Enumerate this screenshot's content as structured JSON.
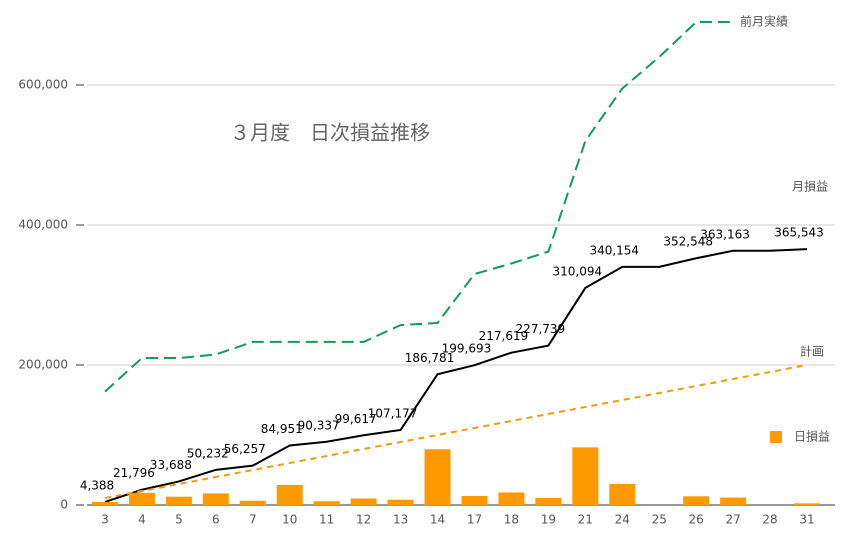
{
  "chart_data": {
    "type": "combo",
    "title": "３月度　日次損益推移",
    "categories": [
      "3",
      "4",
      "5",
      "6",
      "7",
      "10",
      "11",
      "12",
      "13",
      "14",
      "17",
      "18",
      "19",
      "21",
      "24",
      "25",
      "26",
      "27",
      "28",
      "31"
    ],
    "ylim": [
      0,
      700000
    ],
    "yticks": [
      0,
      {
        "value": 200000,
        "label": "200,000"
      },
      {
        "value": 400000,
        "label": "400,000"
      },
      {
        "value": 600000,
        "label": "600,000"
      }
    ],
    "grid": true,
    "series": [
      {
        "name": "前月実績",
        "type": "line",
        "dash": "12,6",
        "color": "#0f9d58",
        "values": [
          162000,
          210000,
          210000,
          215000,
          233000,
          233000,
          233000,
          233000,
          257000,
          260000,
          330000,
          345000,
          362000,
          520000,
          595000,
          640000,
          690000,
          690000,
          null,
          null
        ]
      },
      {
        "name": "月損益",
        "type": "line",
        "color": "#000000",
        "values": [
          4388,
          21796,
          33688,
          50232,
          56257,
          84951,
          90337,
          99617,
          107177,
          186781,
          199693,
          217619,
          227739,
          310094,
          340154,
          340154,
          352548,
          363163,
          363163,
          365543
        ],
        "value_labels": [
          "4,388",
          "21,796",
          "33,688",
          "50,232",
          "56,257",
          "84,951",
          "90,337",
          "99,617",
          "107,177",
          "186,781",
          "199,693",
          "217,619",
          "227,739",
          "310,094",
          "340,154",
          null,
          "352,548",
          "363,163",
          null,
          "365,543"
        ]
      },
      {
        "name": "計画",
        "type": "line",
        "dash": "6,5",
        "color": "#f29a0e",
        "values": [
          10000,
          20000,
          30000,
          40000,
          50000,
          60000,
          70000,
          80000,
          90000,
          100000,
          110000,
          120000,
          130000,
          140000,
          150000,
          160000,
          170000,
          180000,
          190000,
          200000
        ]
      },
      {
        "name": "日損益",
        "type": "bar",
        "color": "#ff9900",
        "values": [
          4388,
          17408,
          11892,
          16544,
          6025,
          28694,
          5386,
          9280,
          7560,
          79604,
          12912,
          17926,
          10120,
          82355,
          30060,
          0,
          12394,
          10615,
          0,
          2380
        ]
      }
    ]
  }
}
